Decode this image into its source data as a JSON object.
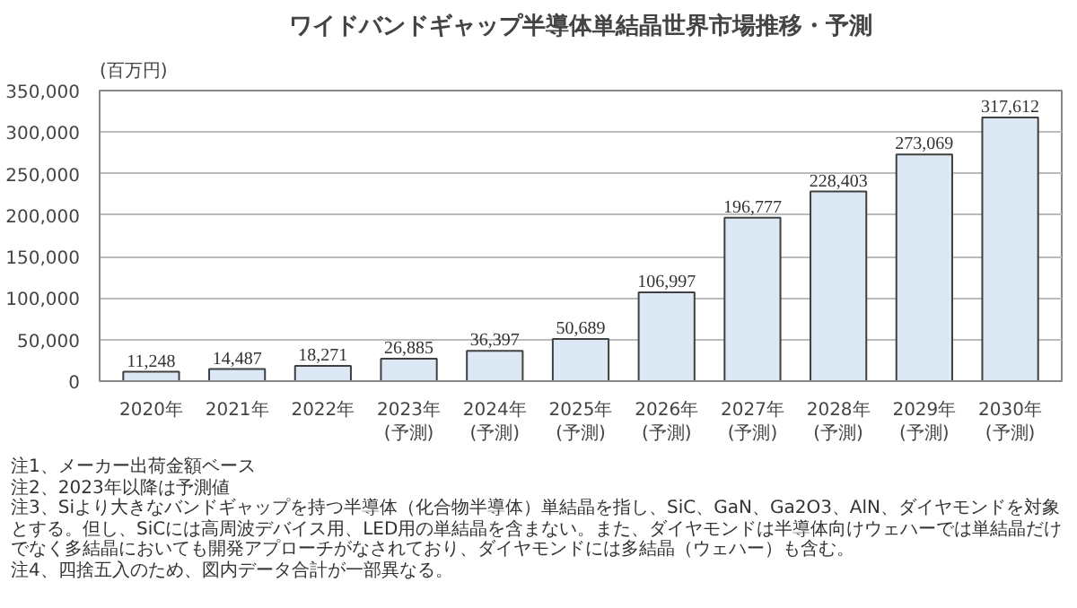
{
  "chart_data": {
    "type": "bar",
    "title": "ワイドバンドギャップ半導体単結晶世界市場推移・予測",
    "ylabel": "(百万円)",
    "categories": [
      "2020年",
      "2021年",
      "2022年",
      "2023年\n(予測)",
      "2024年\n(予測)",
      "2025年\n(予測)",
      "2026年\n(予測)",
      "2027年\n(予測)",
      "2028年\n(予測)",
      "2029年\n(予測)",
      "2030年\n(予測)"
    ],
    "values": [
      11248,
      14487,
      18271,
      26885,
      36397,
      50689,
      106997,
      196777,
      228403,
      273069,
      317612
    ],
    "value_labels": [
      "11,248",
      "14,487",
      "18,271",
      "26,885",
      "36,397",
      "50,689",
      "106,997",
      "196,777",
      "228,403",
      "273,069",
      "317,612"
    ],
    "color": "#dce9f5",
    "grid": "y",
    "ylim": [
      0,
      350000
    ],
    "yticks": [
      {
        "value": 0,
        "label": "0"
      },
      {
        "value": 50000,
        "label": "50,000"
      },
      {
        "value": 100000,
        "label": "100,000"
      },
      {
        "value": 150000,
        "label": "150,000"
      },
      {
        "value": 200000,
        "label": "200,000"
      },
      {
        "value": 250000,
        "label": "250,000"
      },
      {
        "value": 300000,
        "label": "300,000"
      },
      {
        "value": 350000,
        "label": "350,000"
      }
    ],
    "annotations": [
      "注1、メーカー出荷金額ベース",
      "注2、2023年以降は予測値",
      "注3、Siより大きなバンドギャップを持つ半導体（化合物半導体）単結晶を指し、SiC、GaN、Ga2O3、AlN、ダイヤモンドを対象とする。但し、SiCには高周波デバイス用、LED用の単結晶を含まない。また、ダイヤモンドは半導体向けウェハーでは単結晶だけでなく多結晶においても開発アプローチがなされており、ダイヤモンドには多結晶（ウェハー）も含む。",
      "注4、四捨五入のため、図内データ合計が一部異なる。"
    ]
  }
}
